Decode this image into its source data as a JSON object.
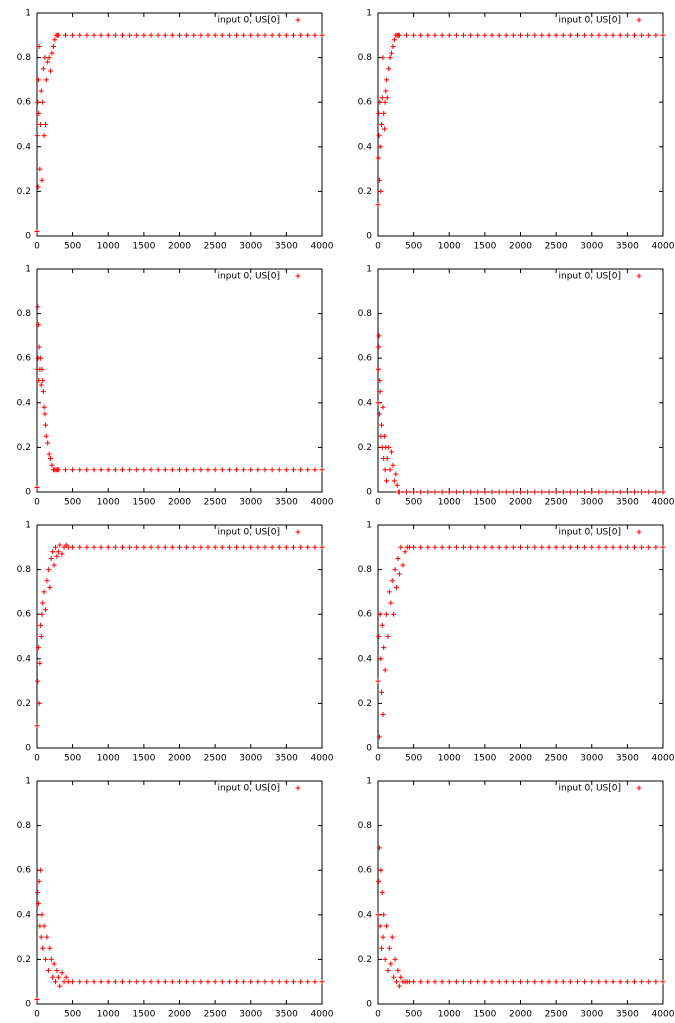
{
  "chart_data": [
    {
      "type": "scatter",
      "legend": "top-right",
      "x": [
        0,
        5,
        10,
        15,
        20,
        25,
        30,
        40,
        50,
        60,
        70,
        80,
        90,
        100,
        110,
        120,
        130,
        150,
        170,
        190,
        210,
        230,
        250,
        270,
        290,
        300,
        400,
        500,
        600,
        700,
        800,
        900,
        1000,
        1100,
        1200,
        1300,
        1400,
        1500,
        1600,
        1700,
        1800,
        1900,
        2000,
        2100,
        2200,
        2300,
        2400,
        2500,
        2600,
        2700,
        2800,
        2900,
        3000,
        3100,
        3200,
        3300,
        3400,
        3500,
        3600,
        3700,
        3800,
        3900,
        4000
      ],
      "series": [
        {
          "name": "input 0, US[0]",
          "color": "#ff0000",
          "values": [
            0.02,
            0.45,
            0.6,
            0.22,
            0.7,
            0.55,
            0.85,
            0.3,
            0.5,
            0.65,
            0.25,
            0.6,
            0.75,
            0.45,
            0.8,
            0.5,
            0.7,
            0.78,
            0.8,
            0.74,
            0.82,
            0.85,
            0.88,
            0.9,
            0.9,
            0.9,
            0.9,
            0.9,
            0.9,
            0.9,
            0.9,
            0.9,
            0.9,
            0.9,
            0.9,
            0.9,
            0.9,
            0.9,
            0.9,
            0.9,
            0.9,
            0.9,
            0.9,
            0.9,
            0.9,
            0.9,
            0.9,
            0.9,
            0.9,
            0.9,
            0.9,
            0.9,
            0.9,
            0.9,
            0.9,
            0.9,
            0.9,
            0.9,
            0.9,
            0.9,
            0.9,
            0.9,
            0.9
          ]
        }
      ],
      "xlim": [
        0,
        4000
      ],
      "xticks": [
        0,
        500,
        1000,
        1500,
        2000,
        2500,
        3000,
        3500,
        4000
      ],
      "ylim": [
        0,
        1
      ],
      "yticks": [
        0,
        0.2,
        0.4,
        0.6,
        0.8,
        1
      ]
    },
    {
      "type": "scatter",
      "legend": "top-right",
      "x": [
        0,
        5,
        10,
        15,
        20,
        25,
        30,
        40,
        50,
        60,
        70,
        80,
        90,
        100,
        110,
        120,
        130,
        150,
        170,
        190,
        210,
        230,
        250,
        270,
        290,
        300,
        400,
        500,
        600,
        700,
        800,
        900,
        1000,
        1100,
        1200,
        1300,
        1400,
        1500,
        1600,
        1700,
        1800,
        1900,
        2000,
        2100,
        2200,
        2300,
        2400,
        2500,
        2600,
        2700,
        2800,
        2900,
        3000,
        3100,
        3200,
        3300,
        3400,
        3500,
        3600,
        3700,
        3800,
        3900,
        4000
      ],
      "series": [
        {
          "name": "input 0, US[0]",
          "color": "#ff0000",
          "values": [
            0.14,
            0.35,
            0.55,
            0.45,
            0.25,
            0.6,
            0.4,
            0.2,
            0.5,
            0.62,
            0.8,
            0.55,
            0.48,
            0.6,
            0.65,
            0.7,
            0.62,
            0.75,
            0.8,
            0.82,
            0.85,
            0.88,
            0.9,
            0.9,
            0.9,
            0.9,
            0.9,
            0.9,
            0.9,
            0.9,
            0.9,
            0.9,
            0.9,
            0.9,
            0.9,
            0.9,
            0.9,
            0.9,
            0.9,
            0.9,
            0.9,
            0.9,
            0.9,
            0.9,
            0.9,
            0.9,
            0.9,
            0.9,
            0.9,
            0.9,
            0.9,
            0.9,
            0.9,
            0.9,
            0.9,
            0.9,
            0.9,
            0.9,
            0.9,
            0.9,
            0.9,
            0.9,
            0.9
          ]
        }
      ],
      "xlim": [
        0,
        4000
      ],
      "xticks": [
        0,
        500,
        1000,
        1500,
        2000,
        2500,
        3000,
        3500,
        4000
      ],
      "ylim": [
        0,
        1
      ],
      "yticks": [
        0,
        0.2,
        0.4,
        0.6,
        0.8,
        1
      ]
    },
    {
      "type": "scatter",
      "legend": "top-right",
      "x": [
        0,
        5,
        10,
        15,
        20,
        25,
        30,
        40,
        50,
        60,
        70,
        80,
        90,
        100,
        110,
        120,
        130,
        150,
        170,
        190,
        210,
        230,
        250,
        270,
        290,
        300,
        400,
        500,
        600,
        700,
        800,
        900,
        1000,
        1100,
        1200,
        1300,
        1400,
        1500,
        1600,
        1700,
        1800,
        1900,
        2000,
        2100,
        2200,
        2300,
        2400,
        2500,
        2600,
        2700,
        2800,
        2900,
        3000,
        3100,
        3200,
        3300,
        3400,
        3500,
        3600,
        3700,
        3800,
        3900,
        4000
      ],
      "series": [
        {
          "name": "input 0, US[0]",
          "color": "#ff0000",
          "values": [
            0.02,
            0.55,
            0.83,
            0.6,
            0.75,
            0.5,
            0.65,
            0.55,
            0.6,
            0.48,
            0.55,
            0.5,
            0.45,
            0.38,
            0.35,
            0.3,
            0.25,
            0.22,
            0.17,
            0.15,
            0.12,
            0.1,
            0.1,
            0.1,
            0.1,
            0.1,
            0.1,
            0.1,
            0.1,
            0.1,
            0.1,
            0.1,
            0.1,
            0.1,
            0.1,
            0.1,
            0.1,
            0.1,
            0.1,
            0.1,
            0.1,
            0.1,
            0.1,
            0.1,
            0.1,
            0.1,
            0.1,
            0.1,
            0.1,
            0.1,
            0.1,
            0.1,
            0.1,
            0.1,
            0.1,
            0.1,
            0.1,
            0.1,
            0.1,
            0.1,
            0.1,
            0.1,
            0.1
          ]
        }
      ],
      "xlim": [
        0,
        4000
      ],
      "xticks": [
        0,
        500,
        1000,
        1500,
        2000,
        2500,
        3000,
        3500,
        4000
      ],
      "ylim": [
        0,
        1
      ],
      "yticks": [
        0,
        0.2,
        0.4,
        0.6,
        0.8,
        1
      ]
    },
    {
      "type": "scatter",
      "legend": "top-right",
      "x": [
        0,
        5,
        10,
        15,
        20,
        25,
        30,
        40,
        50,
        60,
        70,
        80,
        90,
        100,
        110,
        120,
        130,
        150,
        170,
        190,
        210,
        230,
        250,
        270,
        290,
        300,
        400,
        500,
        600,
        700,
        800,
        900,
        1000,
        1100,
        1200,
        1300,
        1400,
        1500,
        1600,
        1700,
        1800,
        1900,
        2000,
        2100,
        2200,
        2300,
        2400,
        2500,
        2600,
        2700,
        2800,
        2900,
        3000,
        3100,
        3200,
        3300,
        3400,
        3500,
        3600,
        3700,
        3800,
        3900,
        4000
      ],
      "series": [
        {
          "name": "input 0, US[0]",
          "color": "#ff0000",
          "values": [
            0.4,
            0.55,
            0.65,
            0.7,
            0.35,
            0.5,
            0.45,
            0.25,
            0.3,
            0.2,
            0.38,
            0.15,
            0.25,
            0.1,
            0.2,
            0.05,
            0.15,
            0.2,
            0.1,
            0.18,
            0.12,
            0.05,
            0.08,
            0.03,
            0,
            0,
            0,
            0,
            0,
            0,
            0,
            0,
            0,
            0,
            0,
            0,
            0,
            0,
            0,
            0,
            0,
            0,
            0,
            0,
            0,
            0,
            0,
            0,
            0,
            0,
            0,
            0,
            0,
            0,
            0,
            0,
            0,
            0,
            0,
            0,
            0,
            0,
            0
          ]
        }
      ],
      "xlim": [
        0,
        4000
      ],
      "xticks": [
        0,
        500,
        1000,
        1500,
        2000,
        2500,
        3000,
        3500,
        4000
      ],
      "ylim": [
        0,
        1
      ],
      "yticks": [
        0,
        0.2,
        0.4,
        0.6,
        0.8,
        1
      ]
    },
    {
      "type": "scatter",
      "legend": "top-right",
      "x": [
        0,
        10,
        20,
        30,
        40,
        50,
        60,
        70,
        80,
        100,
        120,
        140,
        160,
        180,
        200,
        220,
        240,
        260,
        280,
        300,
        320,
        350,
        380,
        410,
        440,
        500,
        600,
        700,
        800,
        900,
        1000,
        1100,
        1200,
        1300,
        1400,
        1500,
        1600,
        1700,
        1800,
        1900,
        2000,
        2100,
        2200,
        2300,
        2400,
        2500,
        2600,
        2700,
        2800,
        2900,
        3000,
        3100,
        3200,
        3300,
        3400,
        3500,
        3600,
        3700,
        3800,
        3900,
        4000
      ],
      "series": [
        {
          "name": "input 0, US[0]",
          "color": "#ff0000",
          "values": [
            0.1,
            0.3,
            0.45,
            0.2,
            0.38,
            0.55,
            0.5,
            0.6,
            0.65,
            0.7,
            0.62,
            0.75,
            0.8,
            0.72,
            0.85,
            0.88,
            0.82,
            0.9,
            0.86,
            0.88,
            0.91,
            0.87,
            0.9,
            0.91,
            0.9,
            0.9,
            0.9,
            0.9,
            0.9,
            0.9,
            0.9,
            0.9,
            0.9,
            0.9,
            0.9,
            0.9,
            0.9,
            0.9,
            0.9,
            0.9,
            0.9,
            0.9,
            0.9,
            0.9,
            0.9,
            0.9,
            0.9,
            0.9,
            0.9,
            0.9,
            0.9,
            0.9,
            0.9,
            0.9,
            0.9,
            0.9,
            0.9,
            0.9,
            0.9,
            0.9,
            0.9
          ]
        }
      ],
      "xlim": [
        0,
        4000
      ],
      "xticks": [
        0,
        500,
        1000,
        1500,
        2000,
        2500,
        3000,
        3500,
        4000
      ],
      "ylim": [
        0,
        1
      ],
      "yticks": [
        0,
        0.2,
        0.4,
        0.6,
        0.8,
        1
      ]
    },
    {
      "type": "scatter",
      "legend": "top-right",
      "x": [
        0,
        10,
        20,
        30,
        40,
        50,
        60,
        70,
        80,
        100,
        120,
        140,
        160,
        180,
        200,
        220,
        240,
        260,
        280,
        300,
        320,
        350,
        380,
        410,
        440,
        500,
        600,
        700,
        800,
        900,
        1000,
        1100,
        1200,
        1300,
        1400,
        1500,
        1600,
        1700,
        1800,
        1900,
        2000,
        2100,
        2200,
        2300,
        2400,
        2500,
        2600,
        2700,
        2800,
        2900,
        3000,
        3100,
        3200,
        3300,
        3400,
        3500,
        3600,
        3700,
        3800,
        3900,
        4000
      ],
      "series": [
        {
          "name": "input 0, US[0]",
          "color": "#ff0000",
          "values": [
            0.3,
            0.5,
            0.05,
            0.6,
            0.4,
            0.25,
            0.55,
            0.15,
            0.45,
            0.35,
            0.6,
            0.5,
            0.7,
            0.65,
            0.75,
            0.6,
            0.8,
            0.72,
            0.85,
            0.78,
            0.9,
            0.82,
            0.88,
            0.9,
            0.9,
            0.9,
            0.9,
            0.9,
            0.9,
            0.9,
            0.9,
            0.9,
            0.9,
            0.9,
            0.9,
            0.9,
            0.9,
            0.9,
            0.9,
            0.9,
            0.9,
            0.9,
            0.9,
            0.9,
            0.9,
            0.9,
            0.9,
            0.9,
            0.9,
            0.9,
            0.9,
            0.9,
            0.9,
            0.9,
            0.9,
            0.9,
            0.9,
            0.9,
            0.9,
            0.9,
            0.9
          ]
        }
      ],
      "xlim": [
        0,
        4000
      ],
      "xticks": [
        0,
        500,
        1000,
        1500,
        2000,
        2500,
        3000,
        3500,
        4000
      ],
      "ylim": [
        0,
        1
      ],
      "yticks": [
        0,
        0.2,
        0.4,
        0.6,
        0.8,
        1
      ]
    },
    {
      "type": "scatter",
      "legend": "top-right",
      "x": [
        0,
        10,
        20,
        30,
        40,
        50,
        60,
        70,
        80,
        100,
        120,
        140,
        160,
        180,
        200,
        220,
        240,
        260,
        280,
        300,
        320,
        350,
        380,
        410,
        440,
        500,
        600,
        700,
        800,
        900,
        1000,
        1100,
        1200,
        1300,
        1400,
        1500,
        1600,
        1700,
        1800,
        1900,
        2000,
        2100,
        2200,
        2300,
        2400,
        2500,
        2600,
        2700,
        2800,
        2900,
        3000,
        3100,
        3200,
        3300,
        3400,
        3500,
        3600,
        3700,
        3800,
        3900,
        4000
      ],
      "series": [
        {
          "name": "input 0, US[0]",
          "color": "#ff0000",
          "values": [
            0.02,
            0.5,
            0.45,
            0.55,
            0.35,
            0.6,
            0.3,
            0.4,
            0.25,
            0.35,
            0.2,
            0.3,
            0.15,
            0.25,
            0.2,
            0.12,
            0.18,
            0.1,
            0.15,
            0.12,
            0.08,
            0.14,
            0.1,
            0.12,
            0.1,
            0.1,
            0.1,
            0.1,
            0.1,
            0.1,
            0.1,
            0.1,
            0.1,
            0.1,
            0.1,
            0.1,
            0.1,
            0.1,
            0.1,
            0.1,
            0.1,
            0.1,
            0.1,
            0.1,
            0.1,
            0.1,
            0.1,
            0.1,
            0.1,
            0.1,
            0.1,
            0.1,
            0.1,
            0.1,
            0.1,
            0.1,
            0.1,
            0.1,
            0.1,
            0.1,
            0.1
          ]
        }
      ],
      "xlim": [
        0,
        4000
      ],
      "xticks": [
        0,
        500,
        1000,
        1500,
        2000,
        2500,
        3000,
        3500,
        4000
      ],
      "ylim": [
        0,
        1
      ],
      "yticks": [
        0,
        0.2,
        0.4,
        0.6,
        0.8,
        1
      ]
    },
    {
      "type": "scatter",
      "legend": "top-right",
      "x": [
        0,
        10,
        20,
        30,
        40,
        50,
        60,
        70,
        80,
        100,
        120,
        140,
        160,
        180,
        200,
        220,
        240,
        260,
        280,
        300,
        320,
        350,
        380,
        410,
        440,
        500,
        600,
        700,
        800,
        900,
        1000,
        1100,
        1200,
        1300,
        1400,
        1500,
        1600,
        1700,
        1800,
        1900,
        2000,
        2100,
        2200,
        2300,
        2400,
        2500,
        2600,
        2700,
        2800,
        2900,
        3000,
        3100,
        3200,
        3300,
        3400,
        3500,
        3600,
        3700,
        3800,
        3900,
        4000
      ],
      "series": [
        {
          "name": "input 0, US[0]",
          "color": "#ff0000",
          "values": [
            0.4,
            0.55,
            0.7,
            0.35,
            0.6,
            0.25,
            0.5,
            0.3,
            0.4,
            0.2,
            0.35,
            0.15,
            0.25,
            0.18,
            0.3,
            0.12,
            0.2,
            0.1,
            0.15,
            0.08,
            0.12,
            0.1,
            0.1,
            0.1,
            0.1,
            0.1,
            0.1,
            0.1,
            0.1,
            0.1,
            0.1,
            0.1,
            0.1,
            0.1,
            0.1,
            0.1,
            0.1,
            0.1,
            0.1,
            0.1,
            0.1,
            0.1,
            0.1,
            0.1,
            0.1,
            0.1,
            0.1,
            0.1,
            0.1,
            0.1,
            0.1,
            0.1,
            0.1,
            0.1,
            0.1,
            0.1,
            0.1,
            0.1,
            0.1,
            0.1,
            0.1
          ]
        }
      ],
      "xlim": [
        0,
        4000
      ],
      "xticks": [
        0,
        500,
        1000,
        1500,
        2000,
        2500,
        3000,
        3500,
        4000
      ],
      "ylim": [
        0,
        1
      ],
      "yticks": [
        0,
        0.2,
        0.4,
        0.6,
        0.8,
        1
      ]
    }
  ]
}
